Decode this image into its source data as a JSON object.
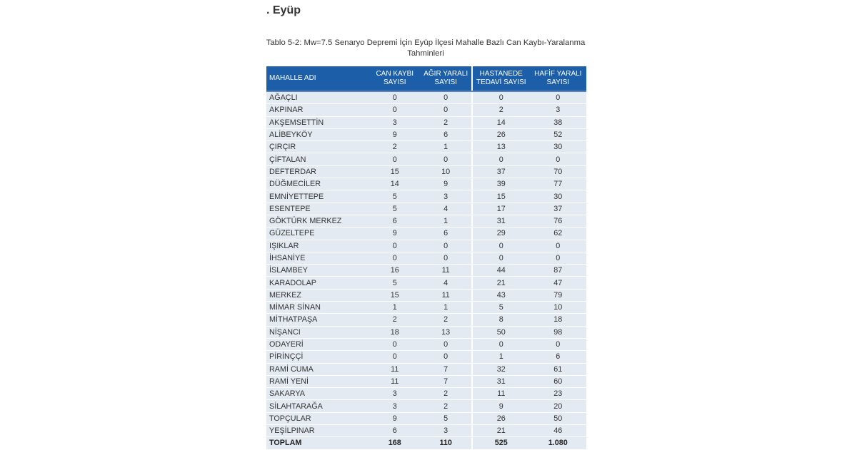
{
  "heading": ". Eyüp",
  "caption": "Tablo 5-2: Mw=7.5 Senaryo Depremi İçin Eyüp İlçesi Mahalle Bazlı Can Kaybı-Yaralanma Tahminleri",
  "colors": {
    "header": "#1d5ea9",
    "row": "#e3eaf2"
  },
  "columns": [
    "MAHALLE ADI",
    "CAN KAYBI SAYISI",
    "AĞIR YARALI SAYISI",
    "HASTANEDE TEDAVİ SAYISI",
    "HAFİF YARALI SAYISI"
  ],
  "rows": [
    [
      "AĞAÇLI",
      "0",
      "0",
      "0",
      "0"
    ],
    [
      "AKPINAR",
      "0",
      "0",
      "2",
      "3"
    ],
    [
      "AKŞEMSETTİN",
      "3",
      "2",
      "14",
      "38"
    ],
    [
      "ALİBEYKÖY",
      "9",
      "6",
      "26",
      "52"
    ],
    [
      "ÇIRÇIR",
      "2",
      "1",
      "13",
      "30"
    ],
    [
      "ÇİFTALAN",
      "0",
      "0",
      "0",
      "0"
    ],
    [
      "DEFTERDAR",
      "15",
      "10",
      "37",
      "70"
    ],
    [
      "DÜĞMECİLER",
      "14",
      "9",
      "39",
      "77"
    ],
    [
      "EMNİYETTEPE",
      "5",
      "3",
      "15",
      "30"
    ],
    [
      "ESENTEPE",
      "5",
      "4",
      "17",
      "37"
    ],
    [
      "GÖKTÜRK MERKEZ",
      "6",
      "1",
      "31",
      "76"
    ],
    [
      "GÜZELTEPE",
      "9",
      "6",
      "29",
      "62"
    ],
    [
      "IŞIKLAR",
      "0",
      "0",
      "0",
      "0"
    ],
    [
      "İHSANİYE",
      "0",
      "0",
      "0",
      "0"
    ],
    [
      "İSLAMBEY",
      "16",
      "11",
      "44",
      "87"
    ],
    [
      "KARADOLAP",
      "5",
      "4",
      "21",
      "47"
    ],
    [
      "MERKEZ",
      "15",
      "11",
      "43",
      "79"
    ],
    [
      "MİMAR SİNAN",
      "1",
      "1",
      "5",
      "10"
    ],
    [
      "MİTHATPAŞA",
      "2",
      "2",
      "8",
      "18"
    ],
    [
      "NİŞANCI",
      "18",
      "13",
      "50",
      "98"
    ],
    [
      "ODAYERİ",
      "0",
      "0",
      "0",
      "0"
    ],
    [
      "PİRİNÇÇİ",
      "0",
      "0",
      "1",
      "6"
    ],
    [
      "RAMİ CUMA",
      "11",
      "7",
      "32",
      "61"
    ],
    [
      "RAMİ YENİ",
      "11",
      "7",
      "31",
      "60"
    ],
    [
      "SAKARYA",
      "3",
      "2",
      "11",
      "23"
    ],
    [
      "SİLAHTARAĞA",
      "3",
      "2",
      "9",
      "20"
    ],
    [
      "TOPÇULAR",
      "9",
      "5",
      "26",
      "50"
    ],
    [
      "YEŞİLPINAR",
      "6",
      "3",
      "21",
      "46"
    ]
  ],
  "total": [
    "TOPLAM",
    "168",
    "110",
    "525",
    "1.080"
  ]
}
